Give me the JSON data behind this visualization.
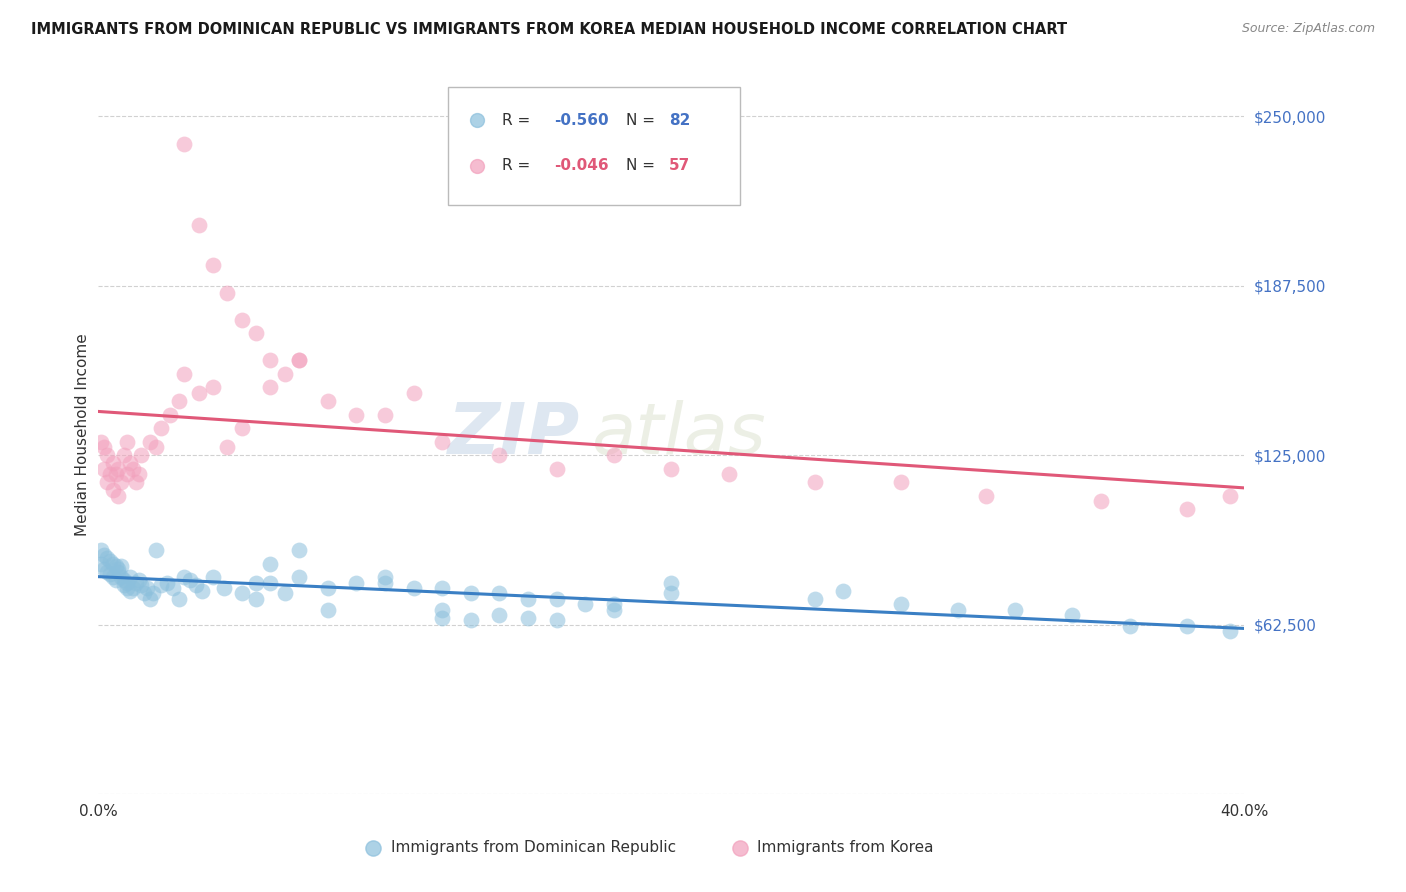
{
  "title": "IMMIGRANTS FROM DOMINICAN REPUBLIC VS IMMIGRANTS FROM KOREA MEDIAN HOUSEHOLD INCOME CORRELATION CHART",
  "source": "Source: ZipAtlas.com",
  "ylabel": "Median Household Income",
  "yticks": [
    0,
    62500,
    125000,
    187500,
    250000
  ],
  "xmin": 0.0,
  "xmax": 0.4,
  "ymin": 0,
  "ymax": 265000,
  "blue_color": "#8bbfdc",
  "pink_color": "#f2a0bc",
  "blue_line_color": "#3a7fc4",
  "pink_line_color": "#e05878",
  "watermark_zip": "ZIP",
  "watermark_atlas": "atlas",
  "blue_x": [
    0.001,
    0.001,
    0.002,
    0.002,
    0.003,
    0.003,
    0.004,
    0.004,
    0.005,
    0.005,
    0.006,
    0.006,
    0.007,
    0.007,
    0.008,
    0.008,
    0.009,
    0.009,
    0.01,
    0.01,
    0.011,
    0.011,
    0.012,
    0.013,
    0.014,
    0.015,
    0.016,
    0.017,
    0.018,
    0.019,
    0.02,
    0.022,
    0.024,
    0.026,
    0.028,
    0.03,
    0.032,
    0.034,
    0.036,
    0.04,
    0.044,
    0.05,
    0.055,
    0.06,
    0.065,
    0.07,
    0.08,
    0.09,
    0.1,
    0.11,
    0.12,
    0.13,
    0.14,
    0.15,
    0.16,
    0.17,
    0.18,
    0.2,
    0.12,
    0.14,
    0.15,
    0.16,
    0.06,
    0.08,
    0.1,
    0.12,
    0.18,
    0.2,
    0.25,
    0.28,
    0.3,
    0.32,
    0.34,
    0.36,
    0.38,
    0.395,
    0.055,
    0.07,
    0.13,
    0.26
  ],
  "blue_y": [
    90000,
    85000,
    88000,
    83000,
    87000,
    82000,
    86000,
    81000,
    85000,
    80000,
    84000,
    79000,
    83000,
    82000,
    84000,
    80000,
    79000,
    77000,
    78000,
    76000,
    80000,
    75000,
    76000,
    78000,
    79000,
    77000,
    74000,
    76000,
    72000,
    74000,
    90000,
    77000,
    78000,
    76000,
    72000,
    80000,
    79000,
    77000,
    75000,
    80000,
    76000,
    74000,
    78000,
    78000,
    74000,
    80000,
    76000,
    78000,
    78000,
    76000,
    76000,
    74000,
    74000,
    72000,
    72000,
    70000,
    70000,
    74000,
    68000,
    66000,
    65000,
    64000,
    85000,
    68000,
    80000,
    65000,
    68000,
    78000,
    72000,
    70000,
    68000,
    68000,
    66000,
    62000,
    62000,
    60000,
    72000,
    90000,
    64000,
    75000
  ],
  "pink_x": [
    0.001,
    0.002,
    0.002,
    0.003,
    0.003,
    0.004,
    0.005,
    0.005,
    0.006,
    0.007,
    0.007,
    0.008,
    0.009,
    0.01,
    0.01,
    0.011,
    0.012,
    0.013,
    0.014,
    0.015,
    0.018,
    0.02,
    0.022,
    0.025,
    0.028,
    0.03,
    0.035,
    0.04,
    0.045,
    0.05,
    0.06,
    0.07,
    0.08,
    0.09,
    0.1,
    0.11,
    0.12,
    0.14,
    0.16,
    0.18,
    0.2,
    0.22,
    0.25,
    0.28,
    0.31,
    0.35,
    0.38,
    0.395,
    0.03,
    0.035,
    0.04,
    0.045,
    0.05,
    0.055,
    0.06,
    0.065,
    0.07
  ],
  "pink_y": [
    130000,
    128000,
    120000,
    125000,
    115000,
    118000,
    122000,
    112000,
    118000,
    120000,
    110000,
    115000,
    125000,
    130000,
    118000,
    122000,
    120000,
    115000,
    118000,
    125000,
    130000,
    128000,
    135000,
    140000,
    145000,
    155000,
    148000,
    150000,
    128000,
    135000,
    150000,
    160000,
    145000,
    140000,
    140000,
    148000,
    130000,
    125000,
    120000,
    125000,
    120000,
    118000,
    115000,
    115000,
    110000,
    108000,
    105000,
    110000,
    240000,
    210000,
    195000,
    185000,
    175000,
    170000,
    160000,
    155000,
    160000
  ]
}
